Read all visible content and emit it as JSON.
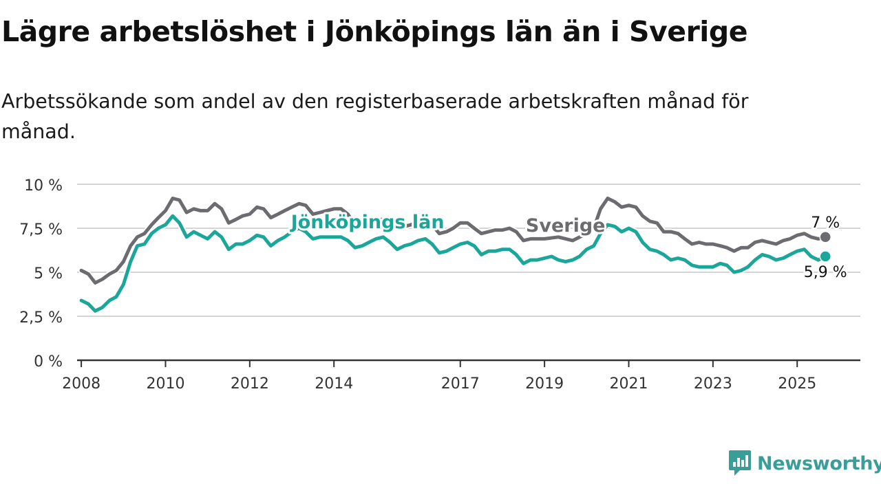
{
  "title": "Lägre arbetslöshet i Jönköpings län än i Sverige",
  "subtitle": "Arbetssökande som andel av den registerbaserade arbetskraften månad för månad.",
  "brand": {
    "name": "Newsworthy",
    "icon": "newsworthy-logo-icon",
    "color": "#3a9e98"
  },
  "chart_data": {
    "type": "line",
    "title": "Lägre arbetslöshet i Jönköpings län än i Sverige",
    "subtitle": "Arbetssökande som andel av den registerbaserade arbetskraften månad för månad.",
    "xlabel": "",
    "ylabel": "",
    "xlim": [
      2007.9,
      2026.5
    ],
    "ylim": [
      0,
      10
    ],
    "x_ticks": [
      2008,
      2010,
      2012,
      2014,
      2017,
      2019,
      2021,
      2023,
      2025
    ],
    "x_tick_labels": [
      "2008",
      "2010",
      "2012",
      "2014",
      "2017",
      "2019",
      "2021",
      "2023",
      "2025"
    ],
    "y_ticks": [
      0,
      2.5,
      5,
      7.5,
      10
    ],
    "y_tick_labels": [
      "0 %",
      "2,5 %",
      "5 %",
      "7,5 %",
      "10 %"
    ],
    "grid": true,
    "legend": "none",
    "series": [
      {
        "name": "Sverige",
        "color": "#6c6b70",
        "end_label": "7 %",
        "points": [
          [
            2008.0,
            5.1
          ],
          [
            2008.17,
            4.9
          ],
          [
            2008.33,
            4.4
          ],
          [
            2008.5,
            4.6
          ],
          [
            2008.67,
            4.9
          ],
          [
            2008.83,
            5.1
          ],
          [
            2009.0,
            5.6
          ],
          [
            2009.17,
            6.5
          ],
          [
            2009.33,
            7.0
          ],
          [
            2009.5,
            7.2
          ],
          [
            2009.67,
            7.7
          ],
          [
            2009.83,
            8.1
          ],
          [
            2010.0,
            8.5
          ],
          [
            2010.17,
            9.2
          ],
          [
            2010.33,
            9.1
          ],
          [
            2010.5,
            8.4
          ],
          [
            2010.67,
            8.6
          ],
          [
            2010.83,
            8.5
          ],
          [
            2011.0,
            8.5
          ],
          [
            2011.17,
            8.9
          ],
          [
            2011.33,
            8.6
          ],
          [
            2011.5,
            7.8
          ],
          [
            2011.67,
            8.0
          ],
          [
            2011.83,
            8.2
          ],
          [
            2012.0,
            8.3
          ],
          [
            2012.17,
            8.7
          ],
          [
            2012.33,
            8.6
          ],
          [
            2012.5,
            8.1
          ],
          [
            2012.67,
            8.3
          ],
          [
            2012.83,
            8.5
          ],
          [
            2013.0,
            8.7
          ],
          [
            2013.17,
            8.9
          ],
          [
            2013.33,
            8.8
          ],
          [
            2013.5,
            8.3
          ],
          [
            2013.67,
            8.4
          ],
          [
            2013.83,
            8.5
          ],
          [
            2014.0,
            8.6
          ],
          [
            2014.17,
            8.6
          ],
          [
            2014.33,
            8.3
          ],
          [
            2014.5,
            7.7
          ],
          [
            2014.67,
            7.8
          ],
          [
            2014.83,
            7.9
          ],
          [
            2015.0,
            8.0
          ],
          [
            2015.17,
            8.0
          ],
          [
            2015.33,
            7.7
          ],
          [
            2015.5,
            7.5
          ],
          [
            2015.67,
            7.6
          ],
          [
            2015.83,
            7.7
          ],
          [
            2016.0,
            7.9
          ],
          [
            2016.17,
            8.0
          ],
          [
            2016.33,
            7.7
          ],
          [
            2016.5,
            7.2
          ],
          [
            2016.67,
            7.3
          ],
          [
            2016.83,
            7.5
          ],
          [
            2017.0,
            7.8
          ],
          [
            2017.17,
            7.8
          ],
          [
            2017.33,
            7.5
          ],
          [
            2017.5,
            7.2
          ],
          [
            2017.67,
            7.3
          ],
          [
            2017.83,
            7.4
          ],
          [
            2018.0,
            7.4
          ],
          [
            2018.17,
            7.5
          ],
          [
            2018.33,
            7.3
          ],
          [
            2018.5,
            6.8
          ],
          [
            2018.67,
            6.9
          ],
          [
            2019.0,
            6.9
          ],
          [
            2019.33,
            7.0
          ],
          [
            2019.67,
            6.8
          ],
          [
            2020.0,
            7.2
          ],
          [
            2020.17,
            7.5
          ],
          [
            2020.33,
            8.6
          ],
          [
            2020.5,
            9.2
          ],
          [
            2020.67,
            9.0
          ],
          [
            2020.83,
            8.7
          ],
          [
            2021.0,
            8.8
          ],
          [
            2021.17,
            8.7
          ],
          [
            2021.33,
            8.2
          ],
          [
            2021.5,
            7.9
          ],
          [
            2021.67,
            7.8
          ],
          [
            2021.83,
            7.3
          ],
          [
            2022.0,
            7.3
          ],
          [
            2022.17,
            7.2
          ],
          [
            2022.33,
            6.9
          ],
          [
            2022.5,
            6.6
          ],
          [
            2022.67,
            6.7
          ],
          [
            2022.83,
            6.6
          ],
          [
            2023.0,
            6.6
          ],
          [
            2023.17,
            6.5
          ],
          [
            2023.33,
            6.4
          ],
          [
            2023.5,
            6.2
          ],
          [
            2023.67,
            6.4
          ],
          [
            2023.83,
            6.4
          ],
          [
            2024.0,
            6.7
          ],
          [
            2024.17,
            6.8
          ],
          [
            2024.33,
            6.7
          ],
          [
            2024.5,
            6.6
          ],
          [
            2024.67,
            6.8
          ],
          [
            2024.83,
            6.9
          ],
          [
            2025.0,
            7.1
          ],
          [
            2025.17,
            7.2
          ],
          [
            2025.33,
            7.0
          ],
          [
            2025.5,
            6.9
          ],
          [
            2025.67,
            7.0
          ]
        ]
      },
      {
        "name": "Jönköpings län",
        "color": "#1aa79a",
        "end_label": "5,9 %",
        "points": [
          [
            2008.0,
            3.4
          ],
          [
            2008.17,
            3.2
          ],
          [
            2008.33,
            2.8
          ],
          [
            2008.5,
            3.0
          ],
          [
            2008.67,
            3.4
          ],
          [
            2008.83,
            3.6
          ],
          [
            2009.0,
            4.3
          ],
          [
            2009.17,
            5.6
          ],
          [
            2009.33,
            6.5
          ],
          [
            2009.5,
            6.6
          ],
          [
            2009.67,
            7.2
          ],
          [
            2009.83,
            7.5
          ],
          [
            2010.0,
            7.7
          ],
          [
            2010.17,
            8.2
          ],
          [
            2010.33,
            7.8
          ],
          [
            2010.5,
            7.0
          ],
          [
            2010.67,
            7.3
          ],
          [
            2010.83,
            7.1
          ],
          [
            2011.0,
            6.9
          ],
          [
            2011.17,
            7.3
          ],
          [
            2011.33,
            7.0
          ],
          [
            2011.5,
            6.3
          ],
          [
            2011.67,
            6.6
          ],
          [
            2011.83,
            6.6
          ],
          [
            2012.0,
            6.8
          ],
          [
            2012.17,
            7.1
          ],
          [
            2012.33,
            7.0
          ],
          [
            2012.5,
            6.5
          ],
          [
            2012.67,
            6.8
          ],
          [
            2012.83,
            7.0
          ],
          [
            2013.0,
            7.3
          ],
          [
            2013.17,
            7.5
          ],
          [
            2013.33,
            7.3
          ],
          [
            2013.5,
            6.9
          ],
          [
            2013.67,
            7.0
          ],
          [
            2013.83,
            7.0
          ],
          [
            2014.0,
            7.0
          ],
          [
            2014.17,
            7.0
          ],
          [
            2014.33,
            6.8
          ],
          [
            2014.5,
            6.4
          ],
          [
            2014.67,
            6.5
          ],
          [
            2014.83,
            6.7
          ],
          [
            2015.0,
            6.9
          ],
          [
            2015.17,
            7.0
          ],
          [
            2015.33,
            6.7
          ],
          [
            2015.5,
            6.3
          ],
          [
            2015.67,
            6.5
          ],
          [
            2015.83,
            6.6
          ],
          [
            2016.0,
            6.8
          ],
          [
            2016.17,
            6.9
          ],
          [
            2016.33,
            6.6
          ],
          [
            2016.5,
            6.1
          ],
          [
            2016.67,
            6.2
          ],
          [
            2016.83,
            6.4
          ],
          [
            2017.0,
            6.6
          ],
          [
            2017.17,
            6.7
          ],
          [
            2017.33,
            6.5
          ],
          [
            2017.5,
            6.0
          ],
          [
            2017.67,
            6.2
          ],
          [
            2017.83,
            6.2
          ],
          [
            2018.0,
            6.3
          ],
          [
            2018.17,
            6.3
          ],
          [
            2018.33,
            6.0
          ],
          [
            2018.5,
            5.5
          ],
          [
            2018.67,
            5.7
          ],
          [
            2018.83,
            5.7
          ],
          [
            2019.0,
            5.8
          ],
          [
            2019.17,
            5.9
          ],
          [
            2019.33,
            5.7
          ],
          [
            2019.5,
            5.6
          ],
          [
            2019.67,
            5.7
          ],
          [
            2019.83,
            5.9
          ],
          [
            2020.0,
            6.3
          ],
          [
            2020.17,
            6.5
          ],
          [
            2020.33,
            7.2
          ],
          [
            2020.5,
            7.7
          ],
          [
            2020.67,
            7.6
          ],
          [
            2020.83,
            7.3
          ],
          [
            2021.0,
            7.5
          ],
          [
            2021.17,
            7.3
          ],
          [
            2021.33,
            6.7
          ],
          [
            2021.5,
            6.3
          ],
          [
            2021.67,
            6.2
          ],
          [
            2021.83,
            6.0
          ],
          [
            2022.0,
            5.7
          ],
          [
            2022.17,
            5.8
          ],
          [
            2022.33,
            5.7
          ],
          [
            2022.5,
            5.4
          ],
          [
            2022.67,
            5.3
          ],
          [
            2022.83,
            5.3
          ],
          [
            2023.0,
            5.3
          ],
          [
            2023.17,
            5.5
          ],
          [
            2023.33,
            5.4
          ],
          [
            2023.5,
            5.0
          ],
          [
            2023.67,
            5.1
          ],
          [
            2023.83,
            5.3
          ],
          [
            2024.0,
            5.7
          ],
          [
            2024.17,
            6.0
          ],
          [
            2024.33,
            5.9
          ],
          [
            2024.5,
            5.7
          ],
          [
            2024.67,
            5.8
          ],
          [
            2024.83,
            6.0
          ],
          [
            2025.0,
            6.2
          ],
          [
            2025.17,
            6.3
          ],
          [
            2025.33,
            5.9
          ],
          [
            2025.5,
            5.7
          ],
          [
            2025.67,
            5.9
          ]
        ]
      }
    ],
    "annotations": [
      {
        "text": "Jönköpings län",
        "series": "Jönköpings län",
        "at": [
          2014.8,
          7.5
        ]
      },
      {
        "text": "Sverige",
        "series": "Sverige",
        "at": [
          2019.5,
          7.3
        ]
      }
    ]
  }
}
